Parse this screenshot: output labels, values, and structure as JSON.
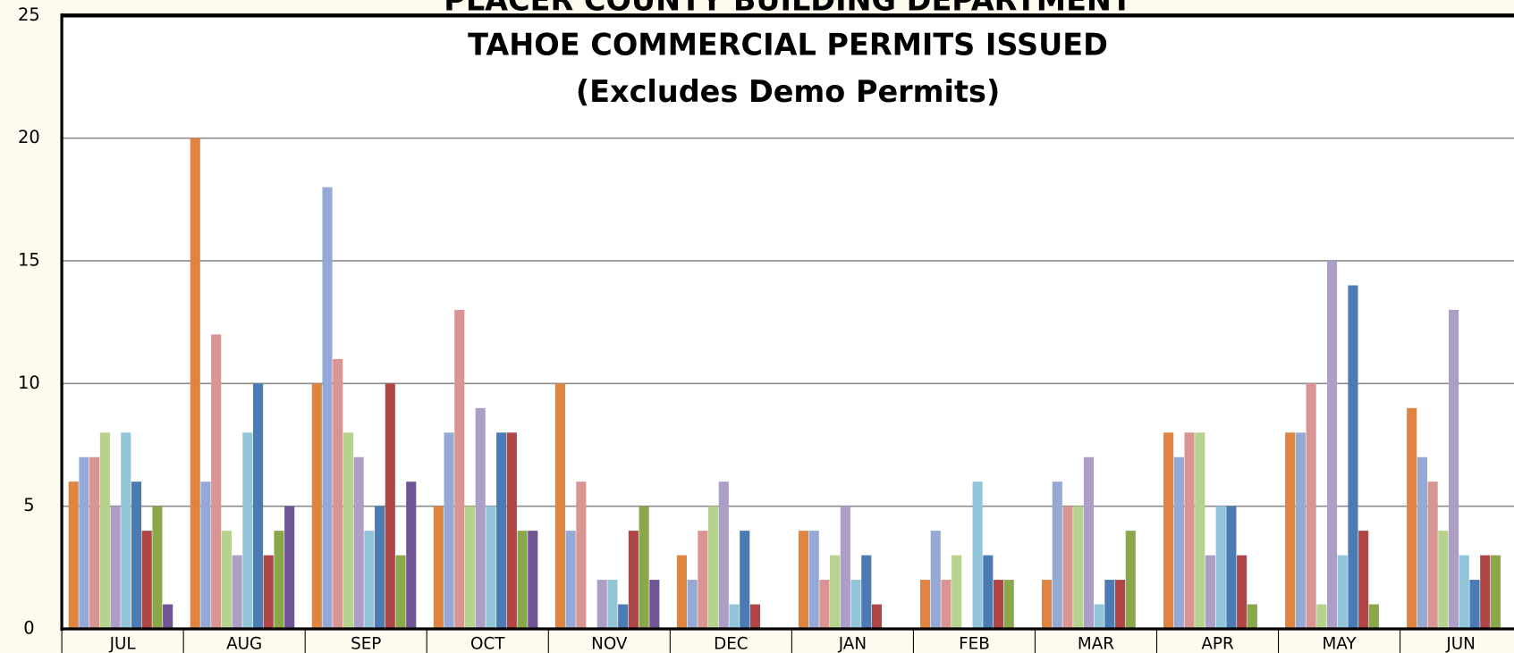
{
  "chart_data": {
    "type": "bar",
    "title": "PLACER COUNTY BUILDING DEPARTMENT",
    "subtitle": "TAHOE COMMERCIAL PERMITS ISSUED",
    "annotation": "(Excludes Demo Permits)",
    "categories": [
      "JUL",
      "AUG",
      "SEP",
      "OCT",
      "NOV",
      "DEC",
      "JAN",
      "FEB",
      "MAR",
      "APR",
      "MAY",
      "JUN"
    ],
    "series": [
      {
        "color": "#e0843f",
        "values": [
          6,
          20,
          10,
          5,
          10,
          3,
          4,
          2,
          2,
          8,
          8,
          9
        ]
      },
      {
        "color": "#94a9d6",
        "values": [
          7,
          6,
          18,
          8,
          4,
          2,
          4,
          4,
          6,
          7,
          8,
          7
        ]
      },
      {
        "color": "#d99594",
        "values": [
          7,
          12,
          11,
          13,
          6,
          4,
          2,
          2,
          5,
          8,
          10,
          6
        ]
      },
      {
        "color": "#b7d18f",
        "values": [
          8,
          4,
          8,
          5,
          0,
          5,
          3,
          3,
          5,
          8,
          1,
          4
        ]
      },
      {
        "color": "#ad9ec6",
        "values": [
          5,
          3,
          7,
          9,
          2,
          6,
          5,
          0,
          7,
          3,
          15,
          13
        ]
      },
      {
        "color": "#92c5d9",
        "values": [
          8,
          8,
          4,
          5,
          2,
          1,
          2,
          6,
          1,
          5,
          3,
          3
        ]
      },
      {
        "color": "#4a7bb4",
        "values": [
          6,
          10,
          5,
          8,
          1,
          4,
          3,
          3,
          2,
          5,
          14,
          2
        ]
      },
      {
        "color": "#b24646",
        "values": [
          4,
          3,
          10,
          8,
          4,
          1,
          1,
          2,
          2,
          3,
          4,
          3
        ]
      },
      {
        "color": "#8aa84a",
        "values": [
          5,
          4,
          3,
          4,
          5,
          0,
          0,
          2,
          4,
          1,
          1,
          3
        ]
      },
      {
        "color": "#6f5593",
        "values": [
          1,
          5,
          6,
          4,
          2,
          0,
          0,
          0,
          0,
          0,
          0,
          0
        ]
      }
    ],
    "ylim": [
      0,
      25
    ],
    "yticks": [
      0,
      5,
      10,
      15,
      20,
      25
    ],
    "grid": true
  }
}
